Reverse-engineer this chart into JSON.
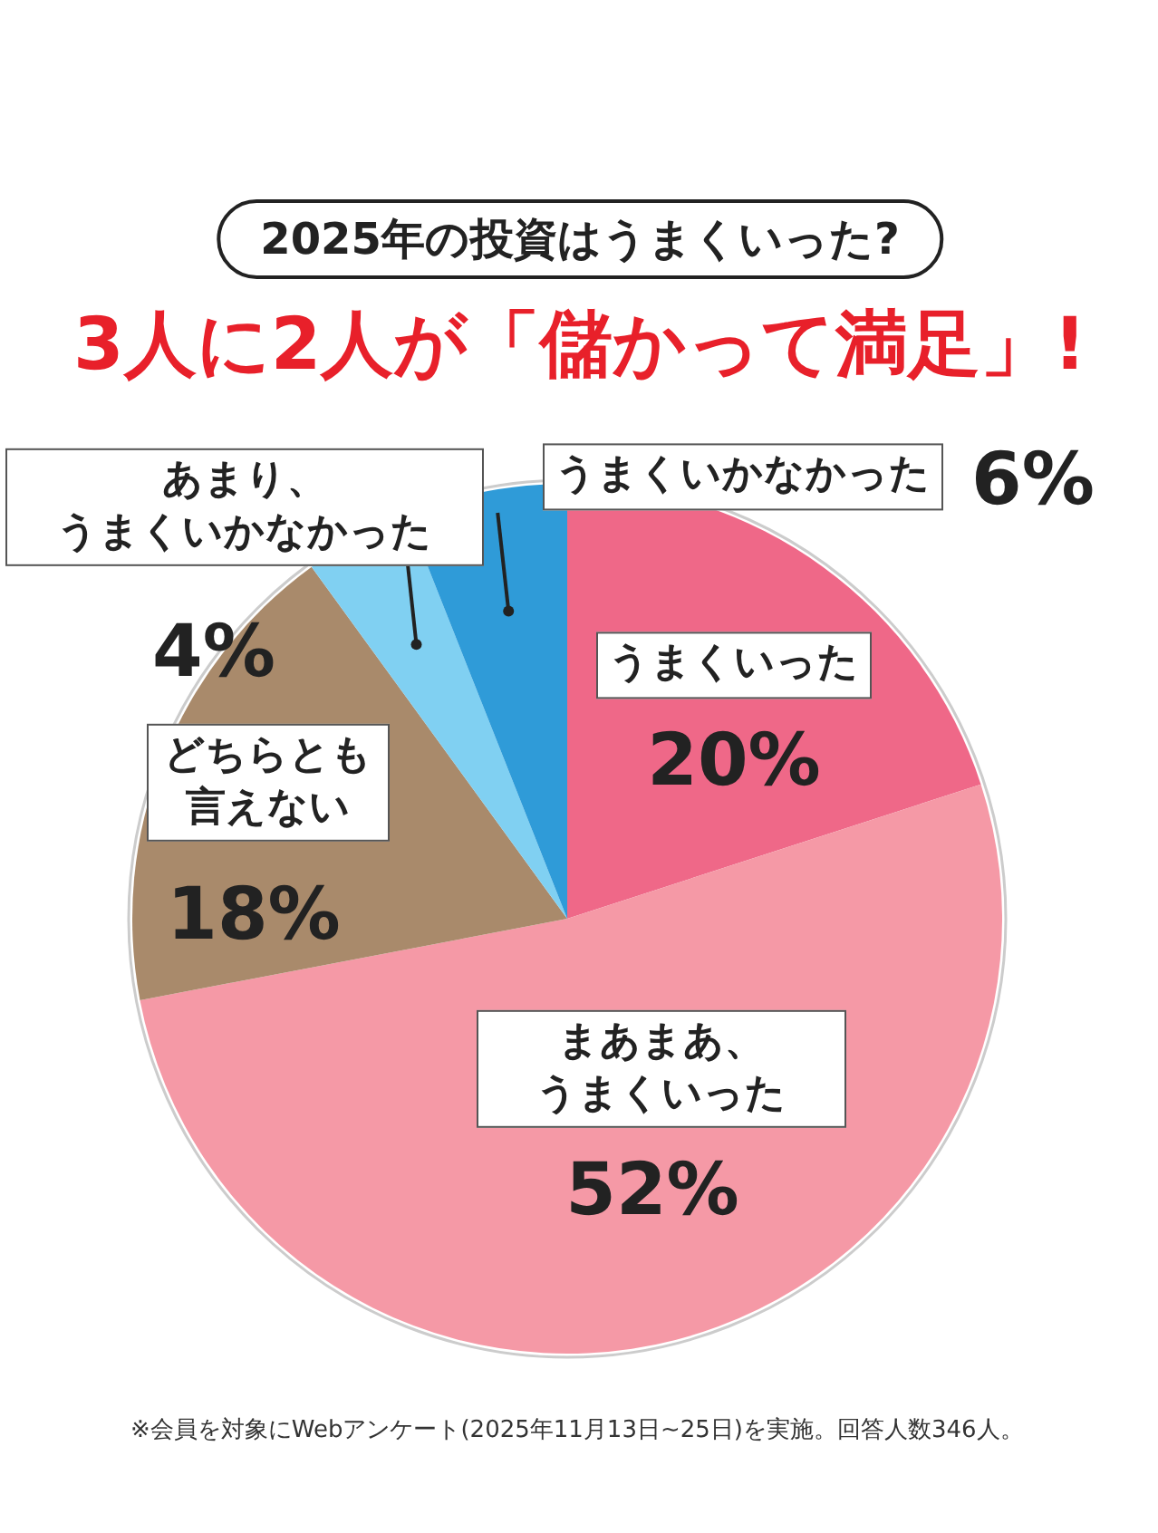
{
  "chart_data": {
    "type": "pie",
    "title": "2025年の投資はうまくいった?",
    "subtitle": "3人に2人が「儲かって満足」!",
    "categories": [
      "うまくいった",
      "まあまあ、うまくいった",
      "どちらとも言えない",
      "あまり、うまくいかなかった",
      "うまくいかなかった"
    ],
    "values": [
      20,
      52,
      18,
      4,
      6
    ],
    "value_labels": [
      "20%",
      "52%",
      "18%",
      "4%",
      "6%"
    ],
    "colors": [
      "#ef6888",
      "#f599a6",
      "#a98a6b",
      "#80d0f2",
      "#2f9bd8"
    ],
    "annotations": [
      "※会員を対象にWebアンケート(2025年11月13日~25日)を実施。回答人数346人。"
    ]
  }
}
